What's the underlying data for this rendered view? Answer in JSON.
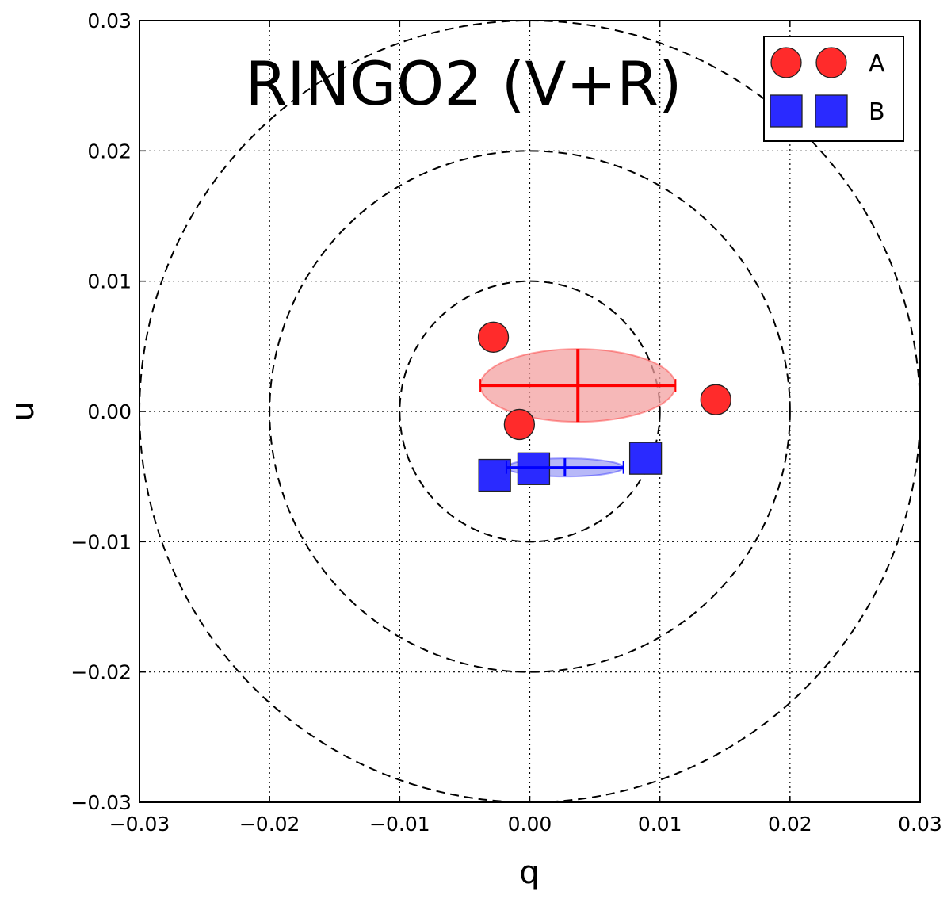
{
  "chart_data": {
    "type": "scatter",
    "title": "RINGO2 (V+R)",
    "xlabel": "q",
    "ylabel": "u",
    "xlim": [
      -0.03,
      0.03
    ],
    "ylim": [
      -0.03,
      0.03
    ],
    "grid": true,
    "xticks": [
      -0.03,
      -0.02,
      -0.01,
      0.0,
      0.01,
      0.02,
      0.03
    ],
    "yticks": [
      -0.03,
      -0.02,
      -0.01,
      0.0,
      0.01,
      0.02,
      0.03
    ],
    "xtick_labels": [
      "−0.03",
      "−0.02",
      "−0.01",
      "0.00",
      "0.01",
      "0.02",
      "0.03"
    ],
    "ytick_labels": [
      "−0.03",
      "−0.02",
      "−0.01",
      "0.00",
      "0.01",
      "0.02",
      "0.03"
    ],
    "reference_circles": [
      0.01,
      0.02,
      0.03
    ],
    "legend_position": "top-right",
    "series": [
      {
        "name": "A",
        "marker": "circle",
        "color": "#ff2b2b",
        "points": [
          {
            "q": -0.0028,
            "u": 0.0057
          },
          {
            "q": -0.0008,
            "u": -0.001
          },
          {
            "q": 0.0143,
            "u": 0.0009
          }
        ],
        "mean": {
          "q": 0.0037,
          "u": 0.002
        },
        "err_q": 0.0075,
        "err_u": 0.0028,
        "ellipse": {
          "rq": 0.0075,
          "ru": 0.0028
        },
        "ellipse_fill": "#f3a0a0",
        "err_color": "#ff0000"
      },
      {
        "name": "B",
        "marker": "square",
        "color": "#2a2aff",
        "points": [
          {
            "q": -0.0027,
            "u": -0.0049
          },
          {
            "q": 0.0003,
            "u": -0.0044
          },
          {
            "q": 0.0089,
            "u": -0.0036
          }
        ],
        "mean": {
          "q": 0.0027,
          "u": -0.0043
        },
        "err_q": 0.0045,
        "err_u": 0.0007,
        "ellipse": {
          "rq": 0.0045,
          "ru": 0.0007
        },
        "ellipse_fill": "#9fa0f5",
        "err_color": "#0000ff"
      }
    ]
  }
}
